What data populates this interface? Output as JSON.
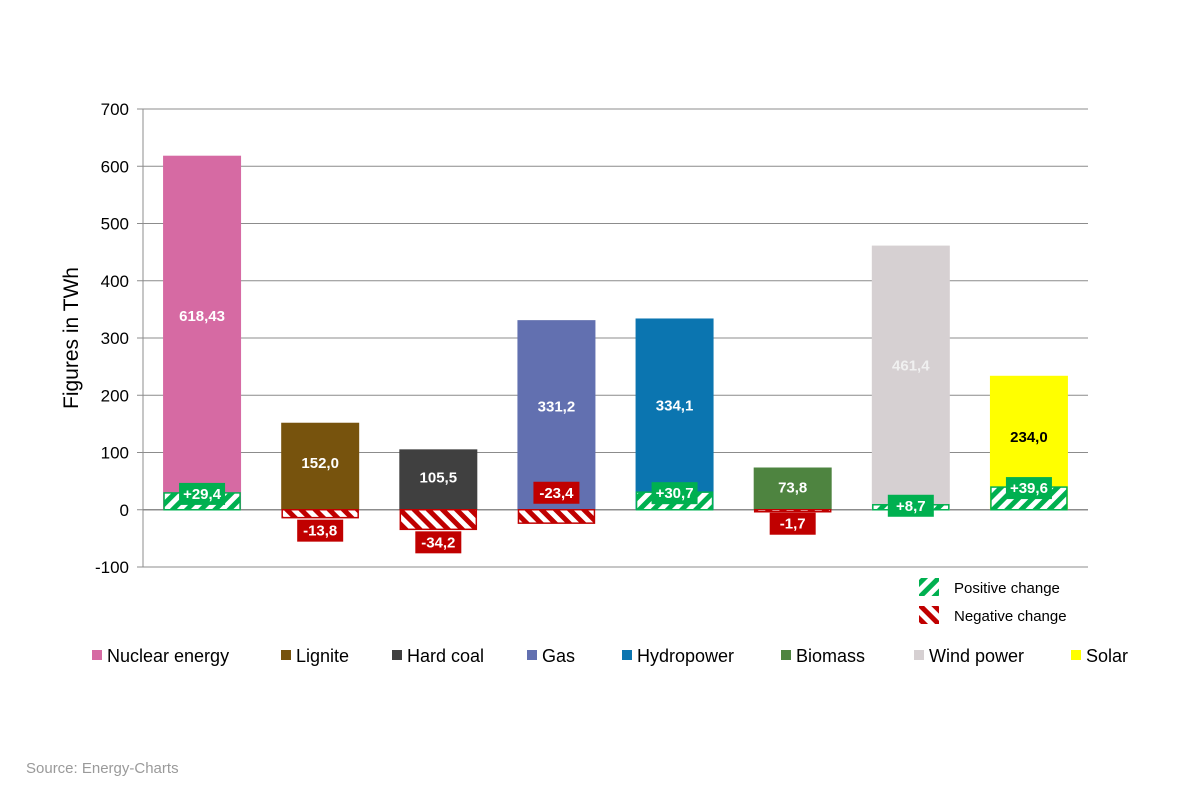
{
  "chart_data": {
    "type": "bar",
    "ylabel": "Figures in TWh",
    "ylim": [
      -100,
      700
    ],
    "yticks": [
      -100,
      0,
      100,
      200,
      300,
      400,
      500,
      600,
      700
    ],
    "grid": true,
    "categories": [
      "Nuclear energy",
      "Lignite",
      "Hard coal",
      "Gas",
      "Hydropower",
      "Biomass",
      "Wind power",
      "Solar"
    ],
    "values": [
      618.43,
      152.0,
      105.5,
      331.2,
      334.1,
      73.8,
      461.4,
      234.0
    ],
    "value_labels": [
      "618,43",
      "152,0",
      "105,5",
      "331,2",
      "334,1",
      "73,8",
      "461,4",
      "234,0"
    ],
    "changes": [
      29.4,
      -13.8,
      -34.2,
      -23.4,
      30.7,
      -1.7,
      8.7,
      39.6
    ],
    "change_labels": [
      "+29,4",
      "-13,8",
      "-34,2",
      "-23,4",
      "+30,7",
      "-1,7",
      "+8,7",
      "+39,6"
    ],
    "colors": [
      "#d66aa3",
      "#77530d",
      "#404040",
      "#6270b0",
      "#0b75b0",
      "#4e8440",
      "#d6d0d2",
      "#ffff00"
    ],
    "label_colors": [
      "#ffffff",
      "#ffffff",
      "#ffffff",
      "#ffffff",
      "#ffffff",
      "#ffffff",
      "#f0f0f0",
      "#000000"
    ],
    "positive_color": "#00b050",
    "negative_color": "#c00000",
    "change_legend": [
      "Positive change",
      "Negative change"
    ],
    "legend_placement": "bottom"
  },
  "source": "Source: Energy-Charts"
}
